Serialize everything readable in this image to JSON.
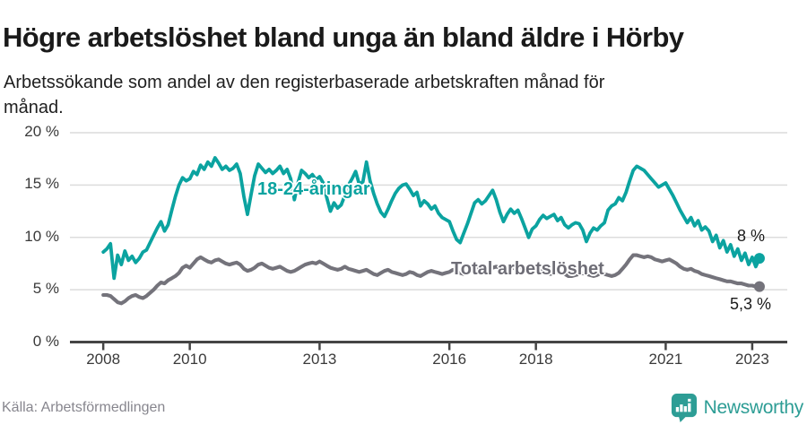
{
  "header": {
    "title": "Högre arbetslöshet bland unga än bland äldre i Hörby",
    "subtitle": "Arbetssökande som andel av den registerbaserade arbetskraften månad för månad."
  },
  "colors": {
    "young": "#0ba3a0",
    "total": "#74737b",
    "axis": "#444444",
    "grid": "#dcdcdc",
    "title": "#1a1a1a",
    "source": "#87868e",
    "brand": "#2d9d95"
  },
  "chart_data": {
    "type": "line",
    "title": "Högre arbetslöshet bland unga än bland äldre i Hörby",
    "subtitle": "Arbetssökande som andel av den registerbaserade arbetskraften månad för månad.",
    "unit": "%",
    "grid": "horizontal",
    "legend_position": "inline-labels",
    "ylim": [
      0,
      20
    ],
    "xlim": [
      2007.23,
      2023.81
    ],
    "x_start_year": 2008.0,
    "x_interval": "monthly",
    "x_last_point": "2023-03",
    "yticks": [
      {
        "value": 0,
        "label": "0 %"
      },
      {
        "value": 5,
        "label": "5 %"
      },
      {
        "value": 10,
        "label": "10 %"
      },
      {
        "value": 15,
        "label": "15 %"
      },
      {
        "value": 20,
        "label": "20 %"
      }
    ],
    "xticks": [
      {
        "value": 2008,
        "label": "2008"
      },
      {
        "value": 2010,
        "label": "2010"
      },
      {
        "value": 2013,
        "label": "2013"
      },
      {
        "value": 2016,
        "label": "2016"
      },
      {
        "value": 2018,
        "label": "2018"
      },
      {
        "value": 2021,
        "label": "2021"
      },
      {
        "value": 2023,
        "label": "2023"
      }
    ],
    "series": [
      {
        "name": "18-24-åringar",
        "color": "#0ba3a0",
        "end_value_label": "8 %",
        "end_value": 8.0,
        "values": [
          8.6,
          8.9,
          9.4,
          6.1,
          8.3,
          7.4,
          8.7,
          7.8,
          8.2,
          7.6,
          8.0,
          8.6,
          8.8,
          9.5,
          10.2,
          10.9,
          11.5,
          10.6,
          11.2,
          12.6,
          13.9,
          15.0,
          15.7,
          15.4,
          15.6,
          16.3,
          16.0,
          16.9,
          16.5,
          17.2,
          16.8,
          17.6,
          17.1,
          16.5,
          16.8,
          16.4,
          16.6,
          17.0,
          16.1,
          13.9,
          12.2,
          14.1,
          15.9,
          17.0,
          16.6,
          16.2,
          16.5,
          16.1,
          16.4,
          16.8,
          16.1,
          16.5,
          15.6,
          13.6,
          15.2,
          16.4,
          16.1,
          15.7,
          16.0,
          15.5,
          15.8,
          15.2,
          13.8,
          12.5,
          13.3,
          12.8,
          13.1,
          14.0,
          15.0,
          15.6,
          16.3,
          15.1,
          15.3,
          17.2,
          15.4,
          14.2,
          13.2,
          12.4,
          12.0,
          12.7,
          13.5,
          14.2,
          14.7,
          15.0,
          15.1,
          14.6,
          14.0,
          14.3,
          13.0,
          13.5,
          13.2,
          12.7,
          13.0,
          12.3,
          11.9,
          11.7,
          11.5,
          10.6,
          9.8,
          9.5,
          10.4,
          11.3,
          12.3,
          13.3,
          13.6,
          13.2,
          13.5,
          14.0,
          14.5,
          13.6,
          12.4,
          11.5,
          12.2,
          12.7,
          12.3,
          12.6,
          11.8,
          10.9,
          10.0,
          10.8,
          11.1,
          11.7,
          12.1,
          11.8,
          12.0,
          12.2,
          11.6,
          11.9,
          11.2,
          10.9,
          11.2,
          11.4,
          11.3,
          10.7,
          9.6,
          10.4,
          10.9,
          10.7,
          11.1,
          11.4,
          12.6,
          13.0,
          13.2,
          13.8,
          13.5,
          14.3,
          15.4,
          16.4,
          16.8,
          16.6,
          16.4,
          16.0,
          15.6,
          15.2,
          14.8,
          15.0,
          15.2,
          14.6,
          14.0,
          13.3,
          12.6,
          12.0,
          11.4,
          11.9,
          11.1,
          11.6,
          10.7,
          11.0,
          10.6,
          9.6,
          10.2,
          9.0,
          9.7,
          8.6,
          9.3,
          8.2,
          8.9,
          7.8,
          8.5,
          7.4,
          8.1,
          7.2,
          8.0
        ]
      },
      {
        "name": "Total arbetslöshet",
        "color": "#74737b",
        "end_value_label": "5,3 %",
        "end_value": 5.3,
        "values": [
          4.5,
          4.5,
          4.4,
          4.1,
          3.8,
          3.7,
          3.9,
          4.2,
          4.4,
          4.5,
          4.3,
          4.2,
          4.4,
          4.7,
          5.0,
          5.4,
          5.7,
          5.6,
          5.9,
          6.1,
          6.3,
          6.6,
          7.1,
          7.3,
          7.1,
          7.5,
          7.9,
          8.1,
          7.9,
          7.7,
          7.6,
          7.8,
          7.9,
          7.7,
          7.5,
          7.4,
          7.5,
          7.6,
          7.4,
          7.0,
          6.8,
          6.9,
          7.1,
          7.4,
          7.5,
          7.3,
          7.1,
          7.0,
          7.1,
          7.2,
          7.0,
          6.8,
          6.7,
          6.8,
          7.0,
          7.2,
          7.4,
          7.5,
          7.6,
          7.5,
          7.7,
          7.5,
          7.3,
          7.1,
          7.0,
          6.9,
          7.0,
          7.2,
          7.0,
          6.9,
          6.8,
          6.7,
          6.8,
          6.9,
          6.7,
          6.5,
          6.4,
          6.6,
          6.8,
          6.9,
          6.7,
          6.6,
          6.5,
          6.4,
          6.5,
          6.7,
          6.6,
          6.4,
          6.3,
          6.5,
          6.7,
          6.8,
          6.7,
          6.6,
          6.5,
          6.6,
          6.7,
          6.9,
          6.8,
          6.6,
          6.5,
          6.6,
          6.8,
          7.0,
          7.1,
          7.0,
          6.9,
          7.0,
          7.1,
          7.2,
          7.1,
          6.9,
          6.8,
          7.0,
          7.1,
          7.2,
          7.1,
          7.0,
          6.9,
          6.8,
          6.9,
          7.0,
          6.8,
          6.6,
          6.5,
          6.6,
          6.7,
          6.6,
          6.5,
          6.3,
          6.3,
          6.4,
          6.5,
          6.6,
          6.5,
          6.4,
          6.3,
          6.4,
          6.6,
          6.5,
          6.4,
          6.3,
          6.4,
          6.6,
          7.0,
          7.4,
          7.9,
          8.3,
          8.3,
          8.2,
          8.1,
          8.2,
          8.1,
          7.9,
          7.8,
          7.7,
          7.8,
          7.9,
          7.7,
          7.5,
          7.2,
          7.0,
          6.9,
          7.0,
          6.8,
          6.7,
          6.5,
          6.4,
          6.3,
          6.2,
          6.1,
          6.0,
          5.9,
          5.8,
          5.8,
          5.7,
          5.6,
          5.6,
          5.5,
          5.4,
          5.4,
          5.3,
          5.3
        ]
      }
    ]
  },
  "footer": {
    "source": "Källa: Arbetsförmedlingen",
    "brand": "Newsworthy"
  }
}
